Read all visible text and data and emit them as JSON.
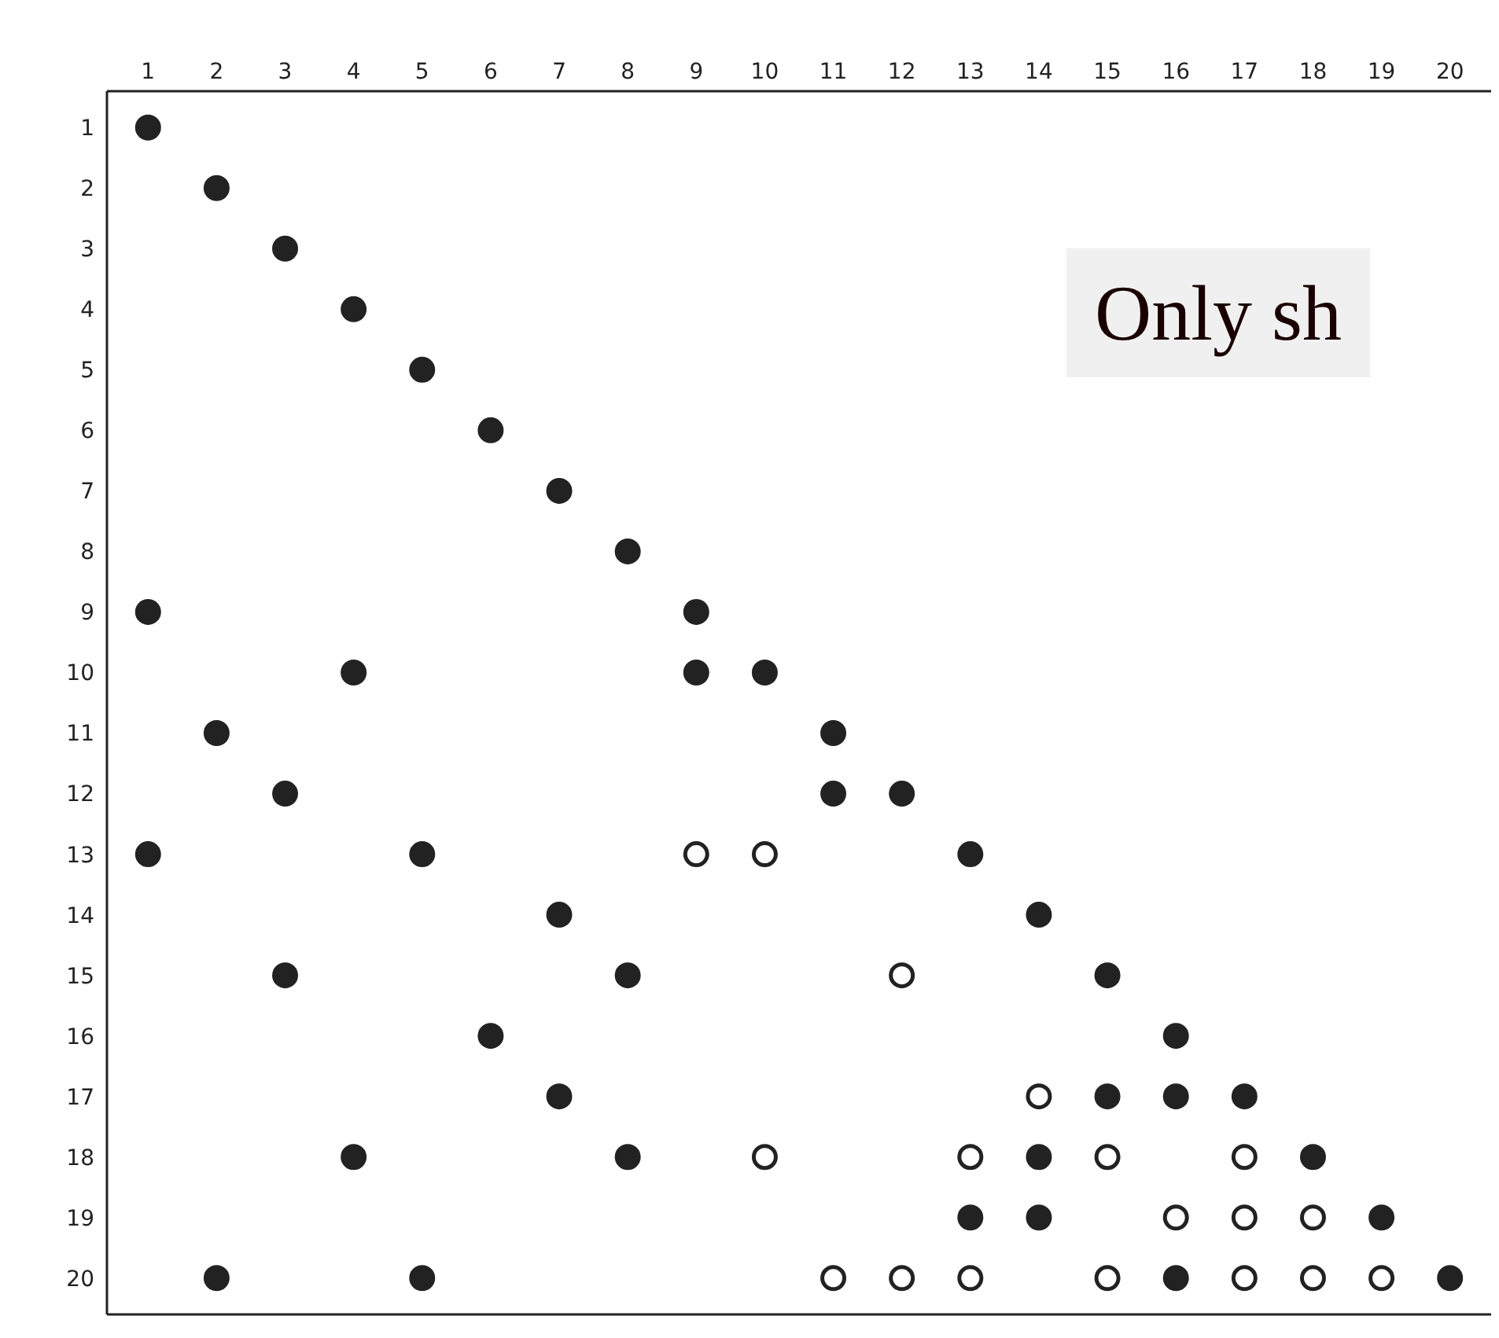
{
  "chart_data": {
    "type": "scatter",
    "marker": "circle",
    "xlim": [
      0.4,
      20.6
    ],
    "ylim": [
      20.6,
      0.4
    ],
    "xticks": [
      1,
      2,
      3,
      4,
      5,
      6,
      7,
      8,
      9,
      10,
      11,
      12,
      13,
      14,
      15,
      16,
      17,
      18,
      19,
      20
    ],
    "yticks": [
      1,
      2,
      3,
      4,
      5,
      6,
      7,
      8,
      9,
      10,
      11,
      12,
      13,
      14,
      15,
      16,
      17,
      18,
      19,
      20
    ],
    "annotations": [
      "Only sh"
    ],
    "series": [
      {
        "color": "#222222",
        "x": [
          1,
          2,
          3,
          4,
          5,
          6,
          7,
          8,
          1,
          9,
          4,
          9,
          10,
          2,
          11,
          3,
          11,
          12,
          1,
          5,
          13,
          7,
          14,
          3,
          8,
          15,
          6,
          16,
          7,
          15,
          16,
          17,
          4,
          8,
          14,
          18,
          13,
          14,
          19,
          2,
          5,
          16,
          20
        ],
        "values": [
          1,
          2,
          3,
          4,
          5,
          6,
          7,
          8,
          9,
          9,
          10,
          10,
          10,
          11,
          11,
          12,
          12,
          12,
          13,
          13,
          13,
          14,
          14,
          15,
          15,
          15,
          16,
          16,
          17,
          17,
          17,
          17,
          18,
          18,
          18,
          18,
          19,
          19,
          19,
          20,
          20,
          20,
          20
        ]
      },
      {
        "color": "#ffffff",
        "x": [
          9,
          10,
          12,
          14,
          10,
          13,
          15,
          17,
          16,
          17,
          18,
          11,
          12,
          13,
          15,
          17,
          18,
          19
        ],
        "values": [
          13,
          13,
          15,
          17,
          18,
          18,
          18,
          18,
          19,
          19,
          19,
          20,
          20,
          20,
          20,
          20,
          20,
          20
        ]
      }
    ]
  }
}
